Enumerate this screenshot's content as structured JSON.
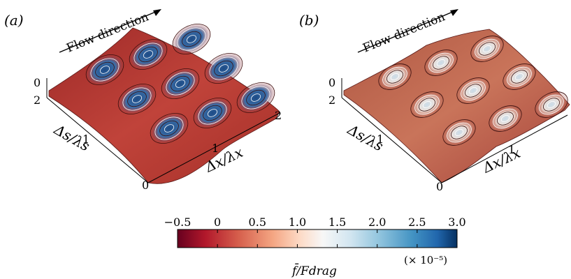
{
  "panels": [
    {
      "id": "a",
      "label": "(a)",
      "flow_label": "Flow direction",
      "ds_label": "Δs/λs",
      "dx_label": "Δx/λx",
      "z_tick": "0",
      "ds_ticks": [
        "2",
        "1",
        "0"
      ],
      "dx_ticks": [
        "1",
        "2"
      ],
      "peak_colors": [
        "#2a5a93",
        "#3b6ea8"
      ],
      "field_color": "#b8352f"
    },
    {
      "id": "b",
      "label": "(b)",
      "flow_label": "Flow direction",
      "ds_label": "Δs/λs",
      "dx_label": "Δx/λx",
      "z_tick": "0",
      "ds_ticks": [
        "2",
        "1",
        "0"
      ],
      "dx_ticks": [
        "1",
        "2"
      ],
      "peak_colors": [
        "#d8e6ef",
        "#c9dbe8"
      ],
      "field_color": "#a9473b"
    }
  ],
  "colorbar": {
    "ticks": [
      "−0.5",
      "0",
      "0.5",
      "1.0",
      "1.5",
      "2.0",
      "2.5",
      "3.0"
    ],
    "tick_values": [
      -0.5,
      0,
      0.5,
      1.0,
      1.5,
      2.0,
      2.5,
      3.0
    ],
    "min": -0.5,
    "max": 3.0,
    "scale_label": "(× 10⁻⁵)",
    "quantity_label": "f̄/Fdrag",
    "colors": [
      "#67001f",
      "#b2182b",
      "#d6604d",
      "#f4a582",
      "#fddbc7",
      "#f7f7f7",
      "#d1e5f0",
      "#92c5de",
      "#4393c3",
      "#2166ac",
      "#053061"
    ]
  }
}
